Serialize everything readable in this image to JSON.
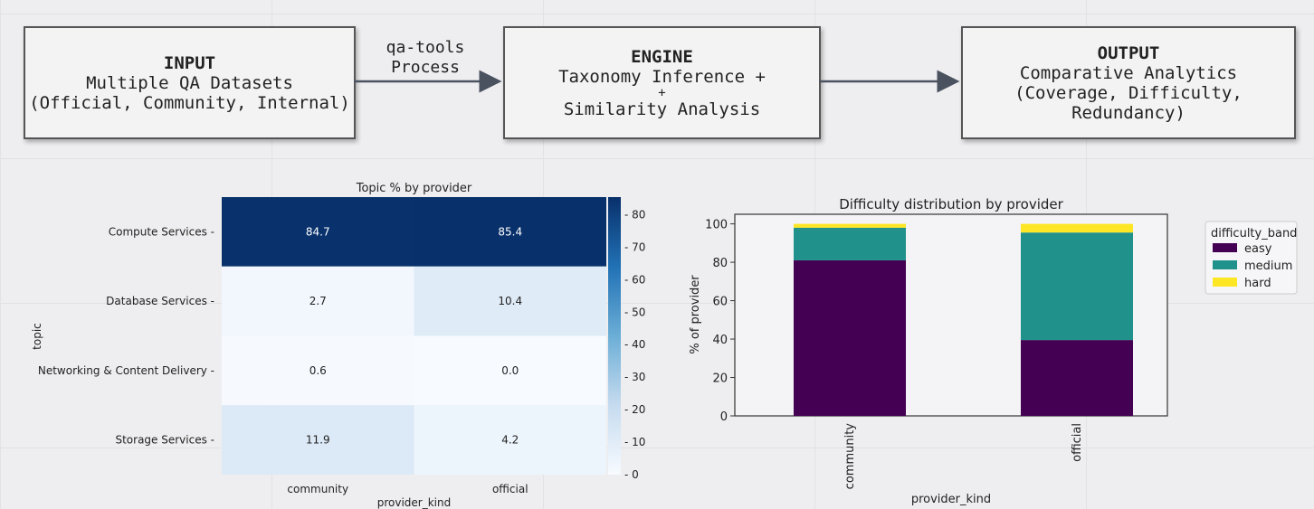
{
  "flow": {
    "input": {
      "title": "INPUT",
      "line1": "Multiple QA Datasets",
      "line2": "(Official, Community, Internal)"
    },
    "arrow1_label_1": "qa-tools",
    "arrow1_label_2": "Process",
    "engine": {
      "title": "ENGINE",
      "line1": "Taxonomy Inference +",
      "line2": "+",
      "line3": "Similarity Analysis"
    },
    "output": {
      "title": "OUTPUT",
      "line1": "Comparative Analytics",
      "line2": "(Coverage, Difficulty, Redundancy)"
    }
  },
  "chart_data": [
    {
      "type": "heatmap",
      "title": "Topic % by provider",
      "xlabel": "provider_kind",
      "ylabel": "topic",
      "x_categories": [
        "community",
        "official"
      ],
      "y_categories": [
        "Compute Services",
        "Database Services",
        "Networking & Content Delivery",
        "Storage Services"
      ],
      "values": [
        [
          84.7,
          85.4
        ],
        [
          2.7,
          10.4
        ],
        [
          0.6,
          0.0
        ],
        [
          11.9,
          4.2
        ]
      ],
      "colormap": "Blues",
      "colorbar_ticks": [
        0,
        10,
        20,
        30,
        40,
        50,
        60,
        70,
        80
      ],
      "colorbar_range": [
        0,
        85.4
      ]
    },
    {
      "type": "bar",
      "stacked": true,
      "title": "Difficulty distribution by provider",
      "xlabel": "provider_kind",
      "ylabel": "% of provider",
      "categories": [
        "community",
        "official"
      ],
      "ylim": [
        0,
        105
      ],
      "yticks": [
        0,
        20,
        40,
        60,
        80,
        100
      ],
      "legend_title": "difficulty_band",
      "legend_position": "outside-right",
      "series": [
        {
          "name": "easy",
          "color": "#440154",
          "values": [
            81,
            39.5
          ]
        },
        {
          "name": "medium",
          "color": "#21918c",
          "values": [
            17,
            56
          ]
        },
        {
          "name": "hard",
          "color": "#fde725",
          "values": [
            2,
            4.5
          ]
        }
      ]
    }
  ]
}
